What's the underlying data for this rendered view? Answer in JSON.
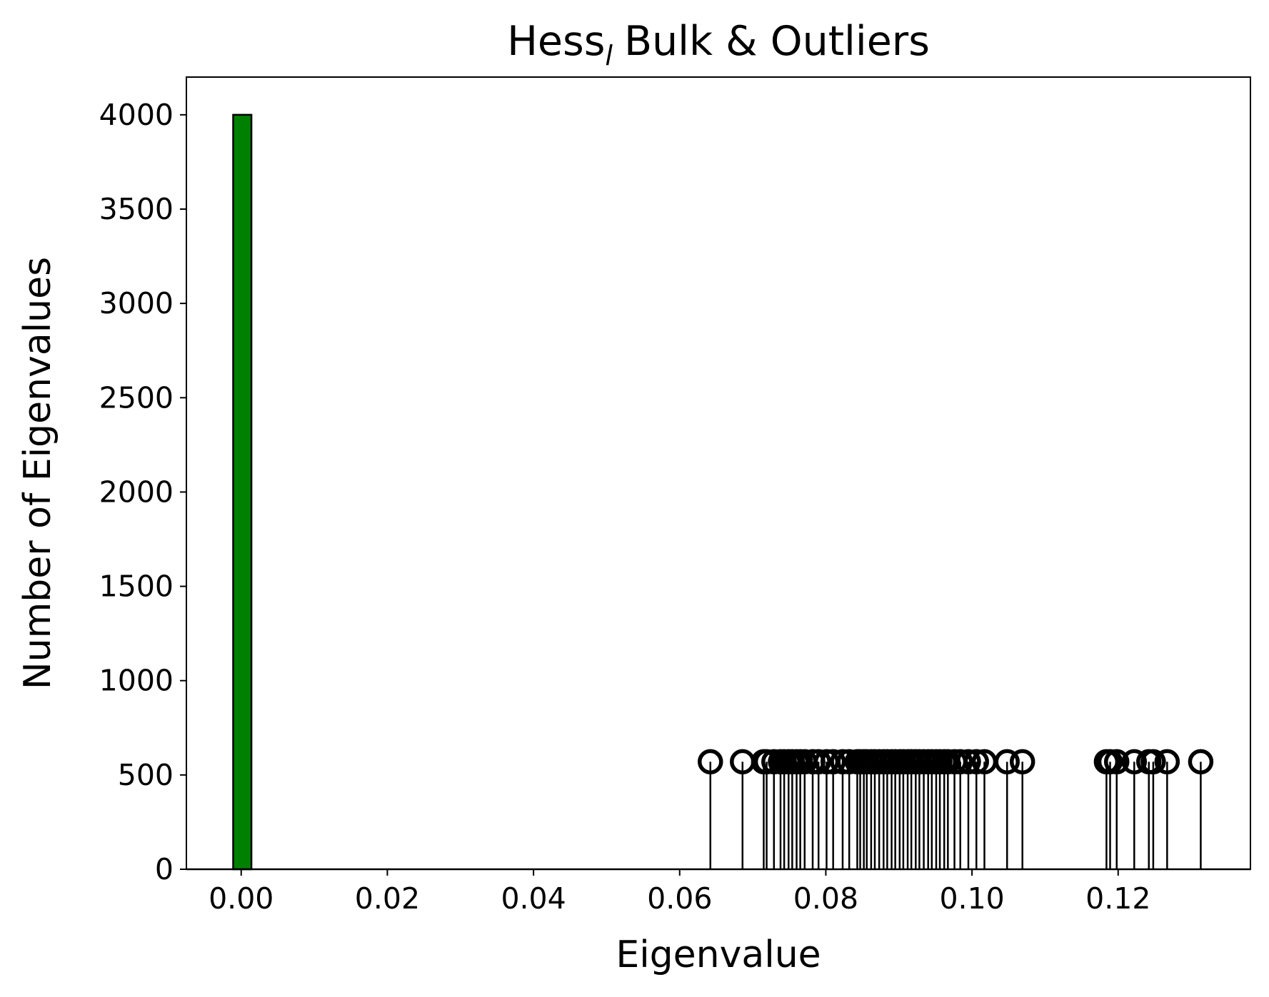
{
  "chart_data": {
    "type": "histogram",
    "title": {
      "main": "Hess",
      "sub": "l",
      "rest": "Bulk & Outliers"
    },
    "x_label": "Eigenvalue",
    "y_label": "Number of Eigenvalues",
    "bins": [
      -0.0011,
      0.0014
    ],
    "counts": [
      4000
    ],
    "color": "#008000",
    "edge_color": "#000000",
    "outliers": {
      "type": "stem",
      "color": "#000000",
      "x": [
        0.0642,
        0.0686,
        0.0715,
        0.0719,
        0.0729,
        0.0738,
        0.0743,
        0.0749,
        0.0754,
        0.076,
        0.0765,
        0.0771,
        0.0782,
        0.079,
        0.0801,
        0.081,
        0.0823,
        0.0832,
        0.0843,
        0.0847,
        0.0852,
        0.0856,
        0.0862,
        0.0867,
        0.0873,
        0.0879,
        0.0884,
        0.089,
        0.0895,
        0.0901,
        0.0906,
        0.0912,
        0.0917,
        0.0923,
        0.0928,
        0.0934,
        0.094,
        0.0945,
        0.0951,
        0.0956,
        0.0962,
        0.0967,
        0.0976,
        0.0984,
        0.0995,
        0.1006,
        0.1017,
        0.1048,
        0.1069,
        0.1184,
        0.1189,
        0.1198,
        0.1222,
        0.1242,
        0.1248,
        0.1267,
        0.1313
      ],
      "values": [
        570,
        570,
        570,
        570,
        570,
        570,
        570,
        570,
        570,
        570,
        570,
        570,
        570,
        570,
        570,
        570,
        570,
        570,
        570,
        570,
        570,
        570,
        570,
        570,
        570,
        570,
        570,
        570,
        570,
        570,
        570,
        570,
        570,
        570,
        570,
        570,
        570,
        570,
        570,
        570,
        570,
        570,
        570,
        570,
        570,
        570,
        570,
        570,
        570,
        570,
        570,
        570,
        570,
        570,
        570,
        570,
        570
      ]
    },
    "xlim": [
      -0.0075,
      0.1381
    ],
    "ylim": [
      0,
      4200
    ],
    "xticks": [
      {
        "value": 0,
        "label": "0.00"
      },
      0.02,
      0.04,
      0.06,
      0.08,
      {
        "value": 0.1,
        "label": "0.10"
      },
      0.12
    ],
    "yticks": [
      0,
      500,
      1000,
      1500,
      2000,
      2500,
      3000,
      3500,
      4000
    ]
  }
}
